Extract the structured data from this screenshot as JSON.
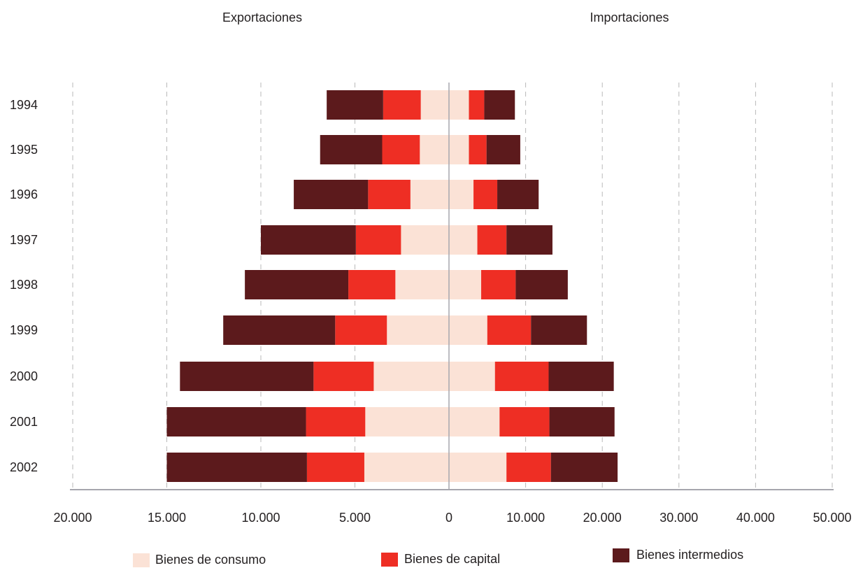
{
  "chart_data": {
    "type": "bar",
    "orientation": "horizontal-diverging",
    "left_header": "Exportaciones",
    "right_header": "Importaciones",
    "categories": [
      "1994",
      "1995",
      "1996",
      "1997",
      "1998",
      "1999",
      "2000",
      "2001",
      "2002"
    ],
    "left_ticks": [
      "20.000",
      "15.000",
      "10.000",
      "5.000"
    ],
    "center_tick": "0",
    "right_ticks": [
      "10.000",
      "20.000",
      "30.000",
      "40.000",
      "50.000"
    ],
    "left_xlim": [
      0,
      20000
    ],
    "right_xlim": [
      0,
      50000
    ],
    "exportaciones": {
      "series": [
        {
          "name": "Bienes de consumo",
          "values": [
            1500,
            1550,
            2050,
            2550,
            2850,
            3300,
            4000,
            4450,
            4500
          ]
        },
        {
          "name": "Bienes de capital",
          "values": [
            2000,
            2000,
            2250,
            2400,
            2500,
            2750,
            3200,
            3150,
            3050
          ]
        },
        {
          "name": "Bienes intermedios",
          "values": [
            3000,
            3300,
            3950,
            5050,
            5500,
            5950,
            7100,
            7400,
            7450
          ]
        }
      ]
    },
    "importaciones": {
      "series": [
        {
          "name": "Bienes de consumo",
          "values": [
            2600,
            2600,
            3200,
            3700,
            4200,
            5000,
            6000,
            6600,
            7500
          ]
        },
        {
          "name": "Bienes de capital",
          "values": [
            2000,
            2300,
            3100,
            3800,
            4500,
            5700,
            7000,
            6500,
            5800
          ]
        },
        {
          "name": "Bienes intermedios",
          "values": [
            4000,
            4400,
            5400,
            6000,
            6800,
            7300,
            8500,
            8500,
            8700
          ]
        }
      ]
    },
    "legend": [
      {
        "name": "Bienes de consumo",
        "color": "#fbe2d6"
      },
      {
        "name": "Bienes de capital",
        "color": "#ee2e24"
      },
      {
        "name": "Bienes intermedios",
        "color": "#5c1a1c"
      }
    ],
    "grid": true,
    "legend_position": "bottom"
  }
}
